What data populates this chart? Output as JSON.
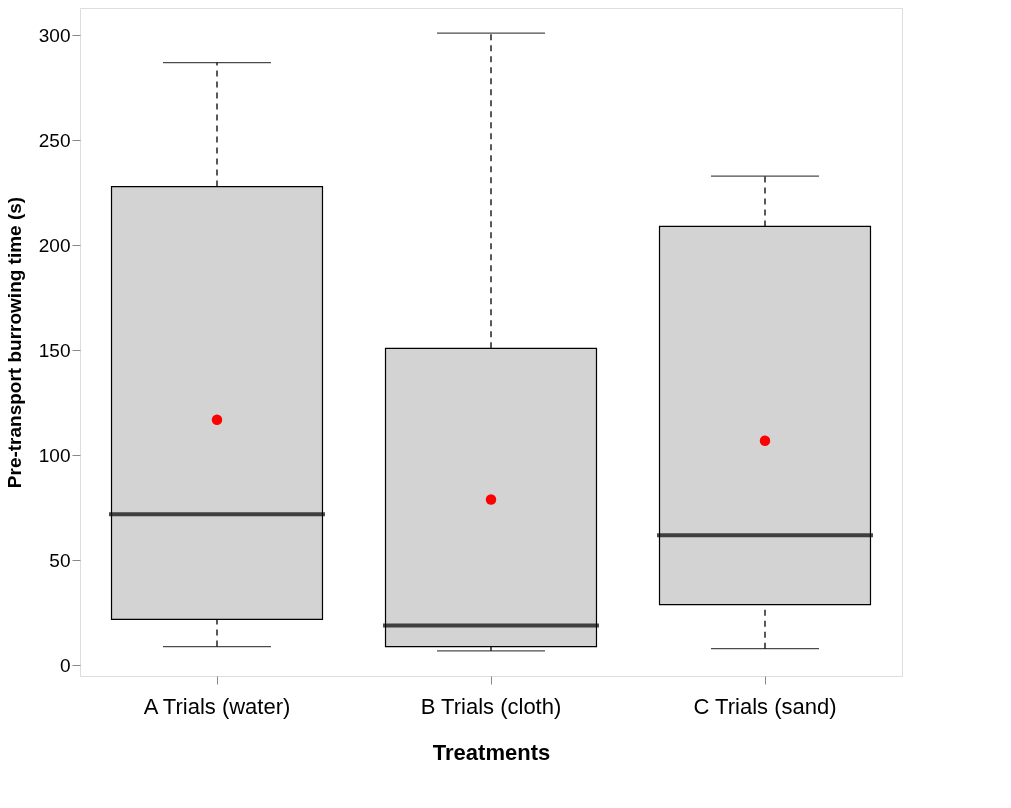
{
  "chart_data": {
    "type": "box",
    "xlabel": "Treatments",
    "ylabel": "Pre-transport burrowing time (s)",
    "categories": [
      "A Trials (water)",
      "B Trials (cloth)",
      "C Trials (sand)"
    ],
    "ylim": [
      -5,
      313
    ],
    "yticks": [
      0,
      50,
      100,
      150,
      200,
      250,
      300
    ],
    "grid": false,
    "series": [
      {
        "color": "#d3d3d3",
        "boxes": [
          {
            "low": 9,
            "q1": 22,
            "median": 72,
            "q3": 228,
            "high": 287
          },
          {
            "low": 7,
            "q1": 9,
            "median": 19,
            "q3": 151,
            "high": 301
          },
          {
            "low": 8,
            "q1": 29,
            "median": 62,
            "q3": 209,
            "high": 233
          }
        ]
      },
      {
        "type": "scatter",
        "color": "#ff0000",
        "x": [
          "A Trials (water)",
          "B Trials (cloth)",
          "C Trials (sand)"
        ],
        "values": [
          117,
          79,
          107
        ]
      }
    ]
  }
}
